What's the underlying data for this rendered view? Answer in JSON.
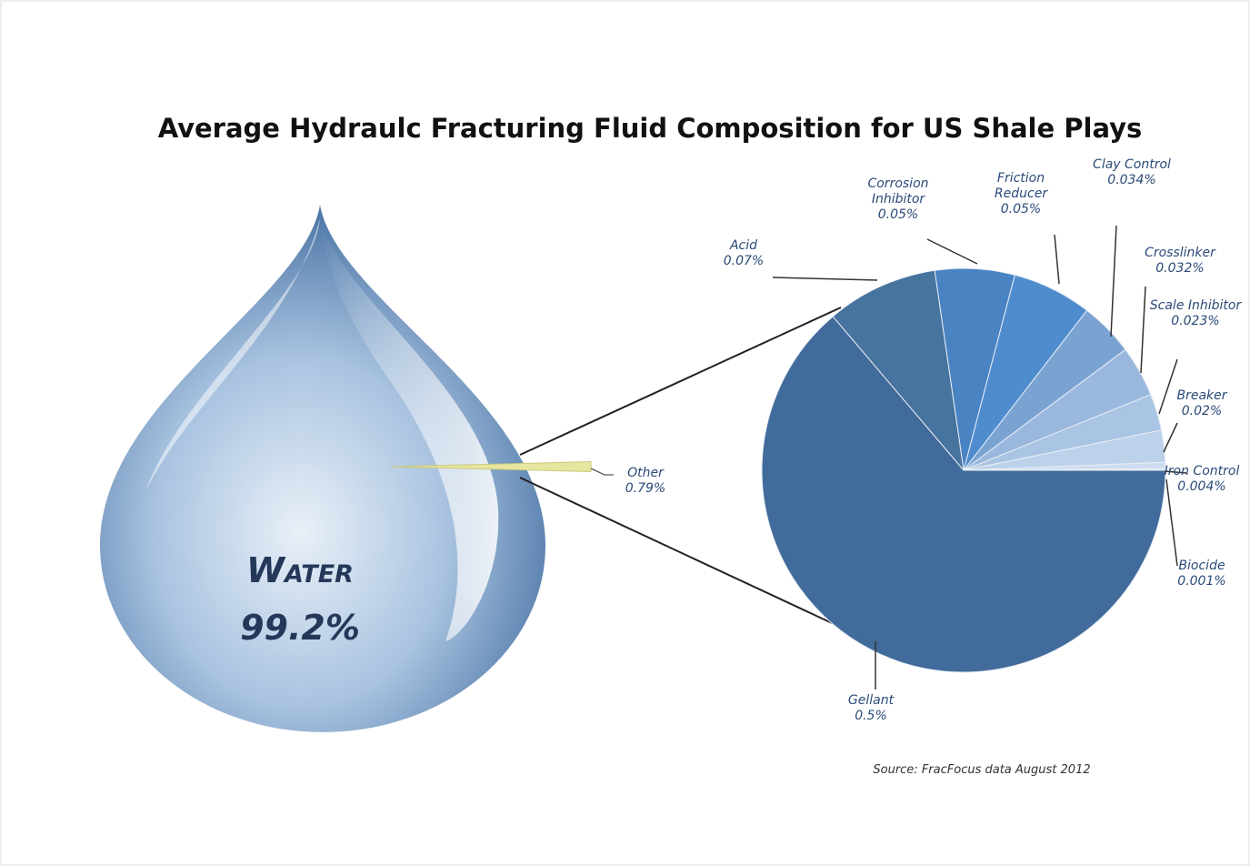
{
  "chart_data": [
    {
      "type": "pie",
      "title": "Average Hydraulc Fracturing Fluid Composition for US Shale Plays",
      "categories": [
        "Water",
        "Other"
      ],
      "values": [
        99.2,
        0.79
      ],
      "value_labels": [
        "99.2%",
        "0.79%"
      ],
      "colors": [
        "#7fa3cc",
        "#e6e6a0"
      ]
    },
    {
      "type": "pie",
      "note": "Source: FracFocus data August 2012",
      "categories": [
        "Biocide",
        "Iron Control",
        "Breaker",
        "Scale Inhibitor",
        "Crosslinker",
        "Clay Control",
        "Friction Reducer",
        "Corrosion Inhibitor",
        "Acid",
        "Gellant"
      ],
      "values": [
        0.001,
        0.004,
        0.02,
        0.023,
        0.032,
        0.034,
        0.05,
        0.05,
        0.07,
        0.5
      ],
      "value_labels": [
        "0.001%",
        "0.004%",
        "0.02%",
        "0.023%",
        "0.032%",
        "0.034%",
        "0.05%",
        "0.05%",
        "0.07%",
        "0.5%"
      ],
      "colors": [
        "#dde8f4",
        "#cdddef",
        "#bcd1ea",
        "#aac4e3",
        "#9ab8dd",
        "#7aa3d2",
        "#4f8cce",
        "#4a83c2",
        "#47739f",
        "#416b9a"
      ]
    }
  ]
}
